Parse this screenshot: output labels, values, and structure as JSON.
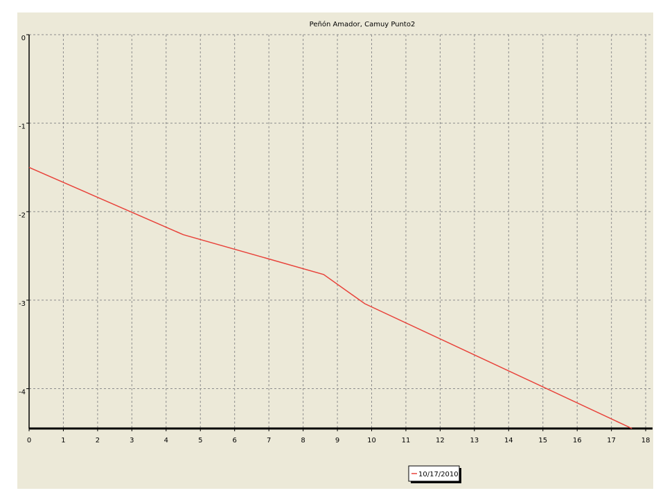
{
  "chart_data": {
    "type": "line",
    "title": "Peñón Amador, Camuy Punto2",
    "series": [
      {
        "name": "10/17/2010",
        "color": "#e8423a",
        "x": [
          0,
          4.5,
          8.6,
          9.8,
          17.6
        ],
        "values": [
          -1.5,
          -2.26,
          -2.71,
          -3.04,
          -4.45
        ]
      }
    ],
    "xlim": [
      0,
      18.2
    ],
    "xticks": [
      0,
      1,
      2,
      3,
      4,
      5,
      6,
      7,
      8,
      9,
      10,
      11,
      12,
      13,
      14,
      15,
      16,
      17,
      18
    ],
    "ylim": [
      -4.45,
      0
    ],
    "yticks": [
      0,
      -1,
      -2,
      -3,
      -4
    ],
    "grid": true,
    "legend": "bottom"
  }
}
